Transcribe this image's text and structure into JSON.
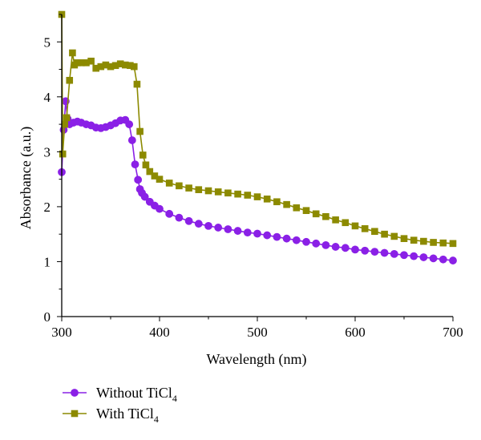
{
  "chart_data": {
    "type": "line",
    "xlabel": "Wavelength (nm)",
    "ylabel": "Absorbance (a.u.)",
    "xlim": [
      300,
      700
    ],
    "ylim": [
      0,
      5.5
    ],
    "xticks": [
      "300",
      "400",
      "500",
      "600",
      "700"
    ],
    "yticks": [
      "0",
      "1",
      "2",
      "3",
      "4",
      "5"
    ],
    "grid": false,
    "legend_position": "bottom-left",
    "series": [
      {
        "name": "Without TiCl",
        "subscript": "4",
        "color": "#8a20e6",
        "marker": "circle",
        "x": [
          300,
          302,
          304,
          306,
          308,
          312,
          316,
          320,
          325,
          330,
          335,
          340,
          345,
          350,
          355,
          360,
          365,
          369,
          372,
          375,
          378,
          380,
          382,
          385,
          390,
          395,
          400,
          410,
          420,
          430,
          440,
          450,
          460,
          470,
          480,
          490,
          500,
          510,
          520,
          530,
          540,
          550,
          560,
          570,
          580,
          590,
          600,
          610,
          620,
          630,
          640,
          650,
          660,
          670,
          680,
          690,
          700
        ],
        "y": [
          2.63,
          3.4,
          3.92,
          3.6,
          3.5,
          3.53,
          3.55,
          3.53,
          3.5,
          3.48,
          3.44,
          3.43,
          3.45,
          3.48,
          3.52,
          3.57,
          3.58,
          3.5,
          3.21,
          2.77,
          2.49,
          2.32,
          2.25,
          2.18,
          2.09,
          2.02,
          1.96,
          1.87,
          1.8,
          1.74,
          1.69,
          1.65,
          1.62,
          1.59,
          1.56,
          1.53,
          1.51,
          1.48,
          1.45,
          1.42,
          1.39,
          1.36,
          1.33,
          1.3,
          1.27,
          1.25,
          1.22,
          1.2,
          1.18,
          1.16,
          1.14,
          1.12,
          1.1,
          1.08,
          1.06,
          1.04,
          1.02
        ]
      },
      {
        "name": "With TiCl",
        "subscript": "4",
        "color": "#8c8a00",
        "marker": "square",
        "x": [
          300,
          301,
          303,
          305,
          308,
          311,
          313,
          316,
          320,
          325,
          330,
          335,
          340,
          345,
          350,
          355,
          360,
          365,
          370,
          374,
          377,
          380,
          383,
          386,
          390,
          395,
          400,
          410,
          420,
          430,
          440,
          450,
          460,
          470,
          480,
          490,
          500,
          510,
          520,
          530,
          540,
          550,
          560,
          570,
          580,
          590,
          600,
          610,
          620,
          630,
          640,
          650,
          660,
          670,
          680,
          690,
          700
        ],
        "y": [
          5.5,
          2.96,
          3.5,
          3.62,
          4.3,
          4.8,
          4.58,
          4.62,
          4.62,
          4.62,
          4.65,
          4.52,
          4.55,
          4.58,
          4.55,
          4.57,
          4.6,
          4.58,
          4.57,
          4.55,
          4.23,
          3.37,
          2.94,
          2.76,
          2.64,
          2.56,
          2.5,
          2.43,
          2.38,
          2.34,
          2.31,
          2.29,
          2.27,
          2.25,
          2.23,
          2.21,
          2.18,
          2.14,
          2.09,
          2.04,
          1.98,
          1.93,
          1.87,
          1.82,
          1.76,
          1.71,
          1.65,
          1.6,
          1.55,
          1.5,
          1.46,
          1.42,
          1.39,
          1.37,
          1.35,
          1.34,
          1.33
        ]
      }
    ]
  }
}
